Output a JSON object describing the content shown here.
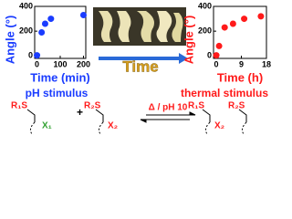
{
  "chart_data": [
    {
      "type": "scatter",
      "x_label": "Time (min)",
      "y_label": "Angle (°)",
      "color": "#1a3cff",
      "x": [
        0,
        20,
        35,
        60,
        200
      ],
      "values": [
        5,
        190,
        260,
        300,
        330
      ],
      "xlim": [
        -10,
        210
      ],
      "ylim": [
        -20,
        400
      ],
      "xticks": [
        0,
        100,
        200
      ],
      "yticks": [
        0,
        200,
        400
      ]
    },
    {
      "type": "scatter",
      "x_label": "Time (h)",
      "y_label": "Angle (°)",
      "color": "#ff1a1a",
      "x": [
        0,
        1,
        3,
        6,
        10,
        16
      ],
      "values": [
        5,
        80,
        230,
        260,
        300,
        320
      ],
      "xlim": [
        -1,
        18
      ],
      "ylim": [
        -20,
        400
      ],
      "xticks": [
        0,
        9,
        18
      ],
      "yticks": [
        0,
        200,
        400
      ]
    }
  ],
  "arrow_label": "Time",
  "left_stimulus": "pH stimulus",
  "right_stimulus": "thermal stimulus",
  "scheme": {
    "r1": "R₁S",
    "r2": "R₂S",
    "x1": "X₁",
    "x2": "X₂",
    "plus": "+",
    "condition": "Δ / pH 10",
    "r1b": "R₁S",
    "r2b": "R₂S",
    "x2b": "X₂"
  }
}
